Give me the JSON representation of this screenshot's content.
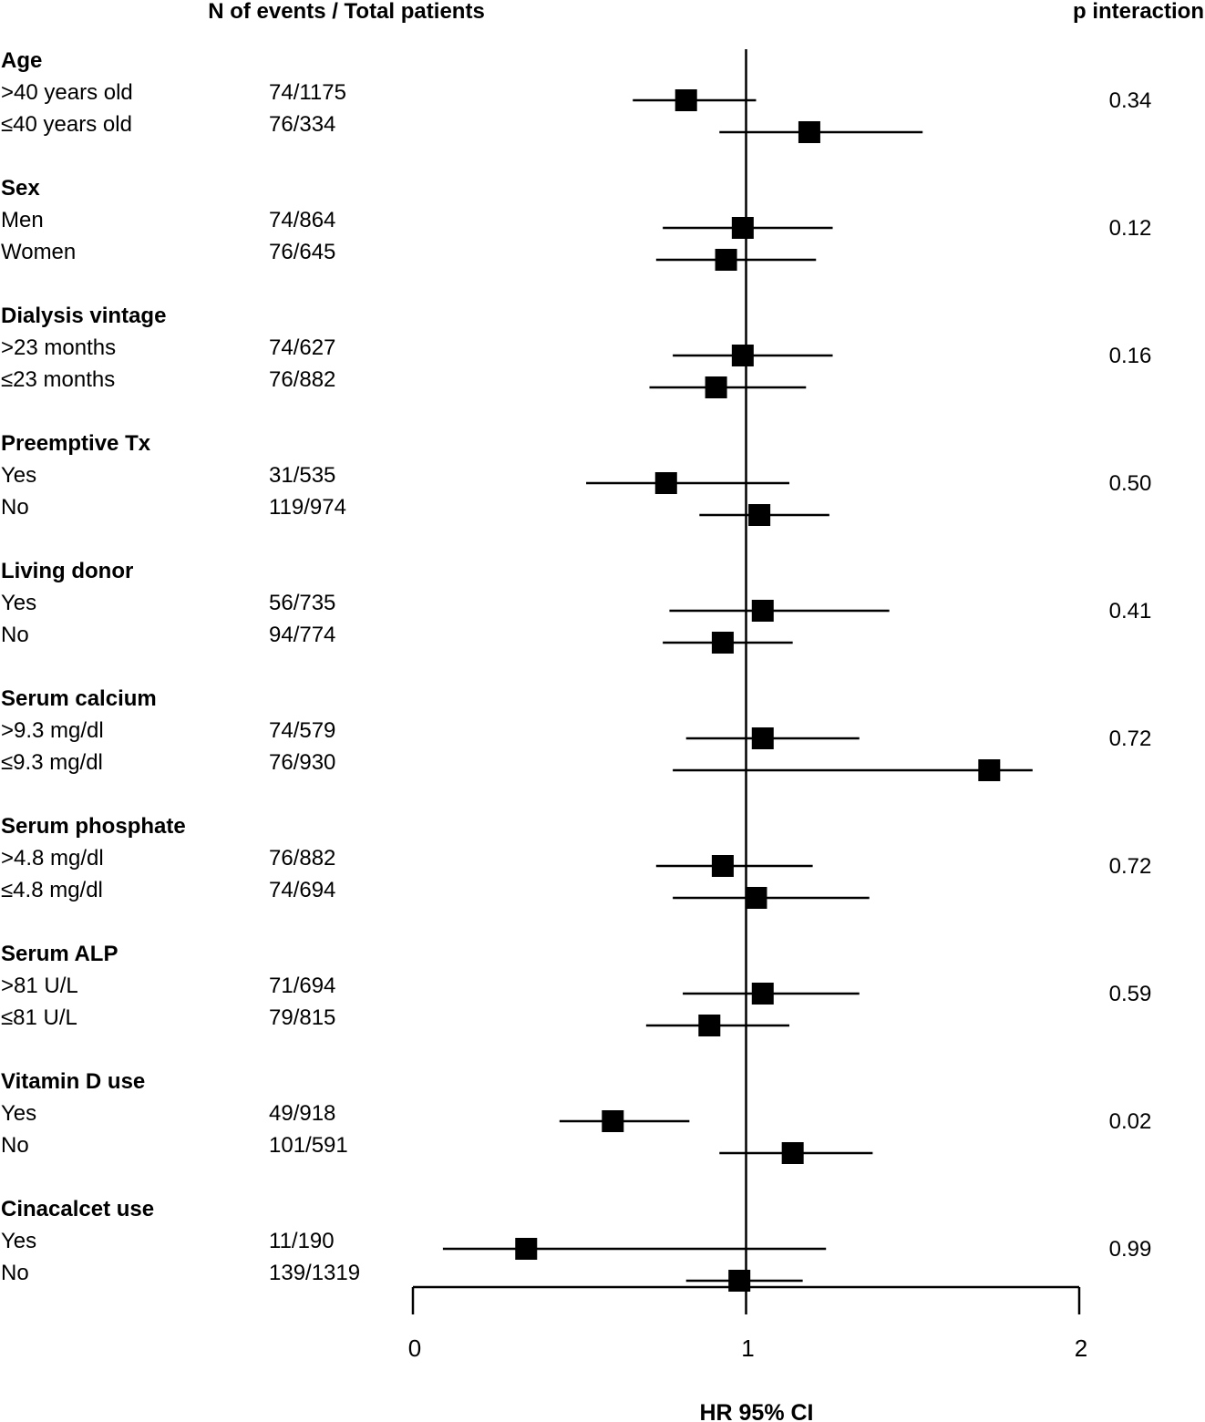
{
  "headers": {
    "events": "N of events / Total patients",
    "p_interaction": "p interaction"
  },
  "chart_data": {
    "type": "forest",
    "xlabel": "HR 95% CI",
    "xlim": [
      0,
      2
    ],
    "xticks": [
      "0",
      "1",
      "2"
    ],
    "reference_line": 1,
    "groups": [
      {
        "name": "Age",
        "p": "0.34",
        "rows": [
          {
            "label": ">40 years old",
            "n": "74/1175",
            "hr": 0.82,
            "lo": 0.66,
            "hi": 1.03
          },
          {
            "label": "≤40 years old",
            "n": "76/334",
            "hr": 1.19,
            "lo": 0.92,
            "hi": 1.53
          }
        ]
      },
      {
        "name": "Sex",
        "p": "0.12",
        "rows": [
          {
            "label": "Men",
            "n": "74/864",
            "hr": 0.99,
            "lo": 0.75,
            "hi": 1.26
          },
          {
            "label": "Women",
            "n": "76/645",
            "hr": 0.94,
            "lo": 0.73,
            "hi": 1.21
          }
        ]
      },
      {
        "name": "Dialysis vintage",
        "p": "0.16",
        "rows": [
          {
            "label": ">23 months",
            "n": "74/627",
            "hr": 0.99,
            "lo": 0.78,
            "hi": 1.26
          },
          {
            "label": "≤23 months",
            "n": "76/882",
            "hr": 0.91,
            "lo": 0.71,
            "hi": 1.18
          }
        ]
      },
      {
        "name": "Preemptive Tx",
        "p": "0.50",
        "rows": [
          {
            "label": "Yes",
            "n": "31/535",
            "hr": 0.76,
            "lo": 0.52,
            "hi": 1.13
          },
          {
            "label": "No",
            "n": "119/974",
            "hr": 1.04,
            "lo": 0.86,
            "hi": 1.25
          }
        ]
      },
      {
        "name": "Living donor",
        "p": "0.41",
        "rows": [
          {
            "label": "Yes",
            "n": "56/735",
            "hr": 1.05,
            "lo": 0.77,
            "hi": 1.43
          },
          {
            "label": "No",
            "n": "94/774",
            "hr": 0.93,
            "lo": 0.75,
            "hi": 1.14
          }
        ]
      },
      {
        "name": "Serum calcium",
        "p": "0.72",
        "rows": [
          {
            "label": ">9.3 mg/dl",
            "n": "74/579",
            "hr": 1.05,
            "lo": 0.82,
            "hi": 1.34
          },
          {
            "label": "≤9.3 mg/dl",
            "n": "76/930",
            "hr": 1.73,
            "lo": 0.78,
            "hi": 1.86
          }
        ]
      },
      {
        "name": "Serum phosphate",
        "p": "0.72",
        "rows": [
          {
            "label": ">4.8 mg/dl",
            "n": "76/882",
            "hr": 0.93,
            "lo": 0.73,
            "hi": 1.2
          },
          {
            "label": "≤4.8 mg/dl",
            "n": "74/694",
            "hr": 1.03,
            "lo": 0.78,
            "hi": 1.37
          }
        ]
      },
      {
        "name": "Serum ALP",
        "p": "0.59",
        "rows": [
          {
            "label": ">81 U/L",
            "n": "71/694",
            "hr": 1.05,
            "lo": 0.81,
            "hi": 1.34
          },
          {
            "label": "≤81 U/L",
            "n": "79/815",
            "hr": 0.89,
            "lo": 0.7,
            "hi": 1.13
          }
        ]
      },
      {
        "name": "Vitamin D use",
        "p": "0.02",
        "rows": [
          {
            "label": "Yes",
            "n": "49/918",
            "hr": 0.6,
            "lo": 0.44,
            "hi": 0.83
          },
          {
            "label": "No",
            "n": "101/591",
            "hr": 1.14,
            "lo": 0.92,
            "hi": 1.38
          }
        ]
      },
      {
        "name": "Cinacalcet use",
        "p": "0.99",
        "rows": [
          {
            "label": "Yes",
            "n": "11/190",
            "hr": 0.34,
            "lo": 0.09,
            "hi": 1.24
          },
          {
            "label": "No",
            "n": "139/1319",
            "hr": 0.98,
            "lo": 0.82,
            "hi": 1.17
          }
        ]
      }
    ]
  }
}
